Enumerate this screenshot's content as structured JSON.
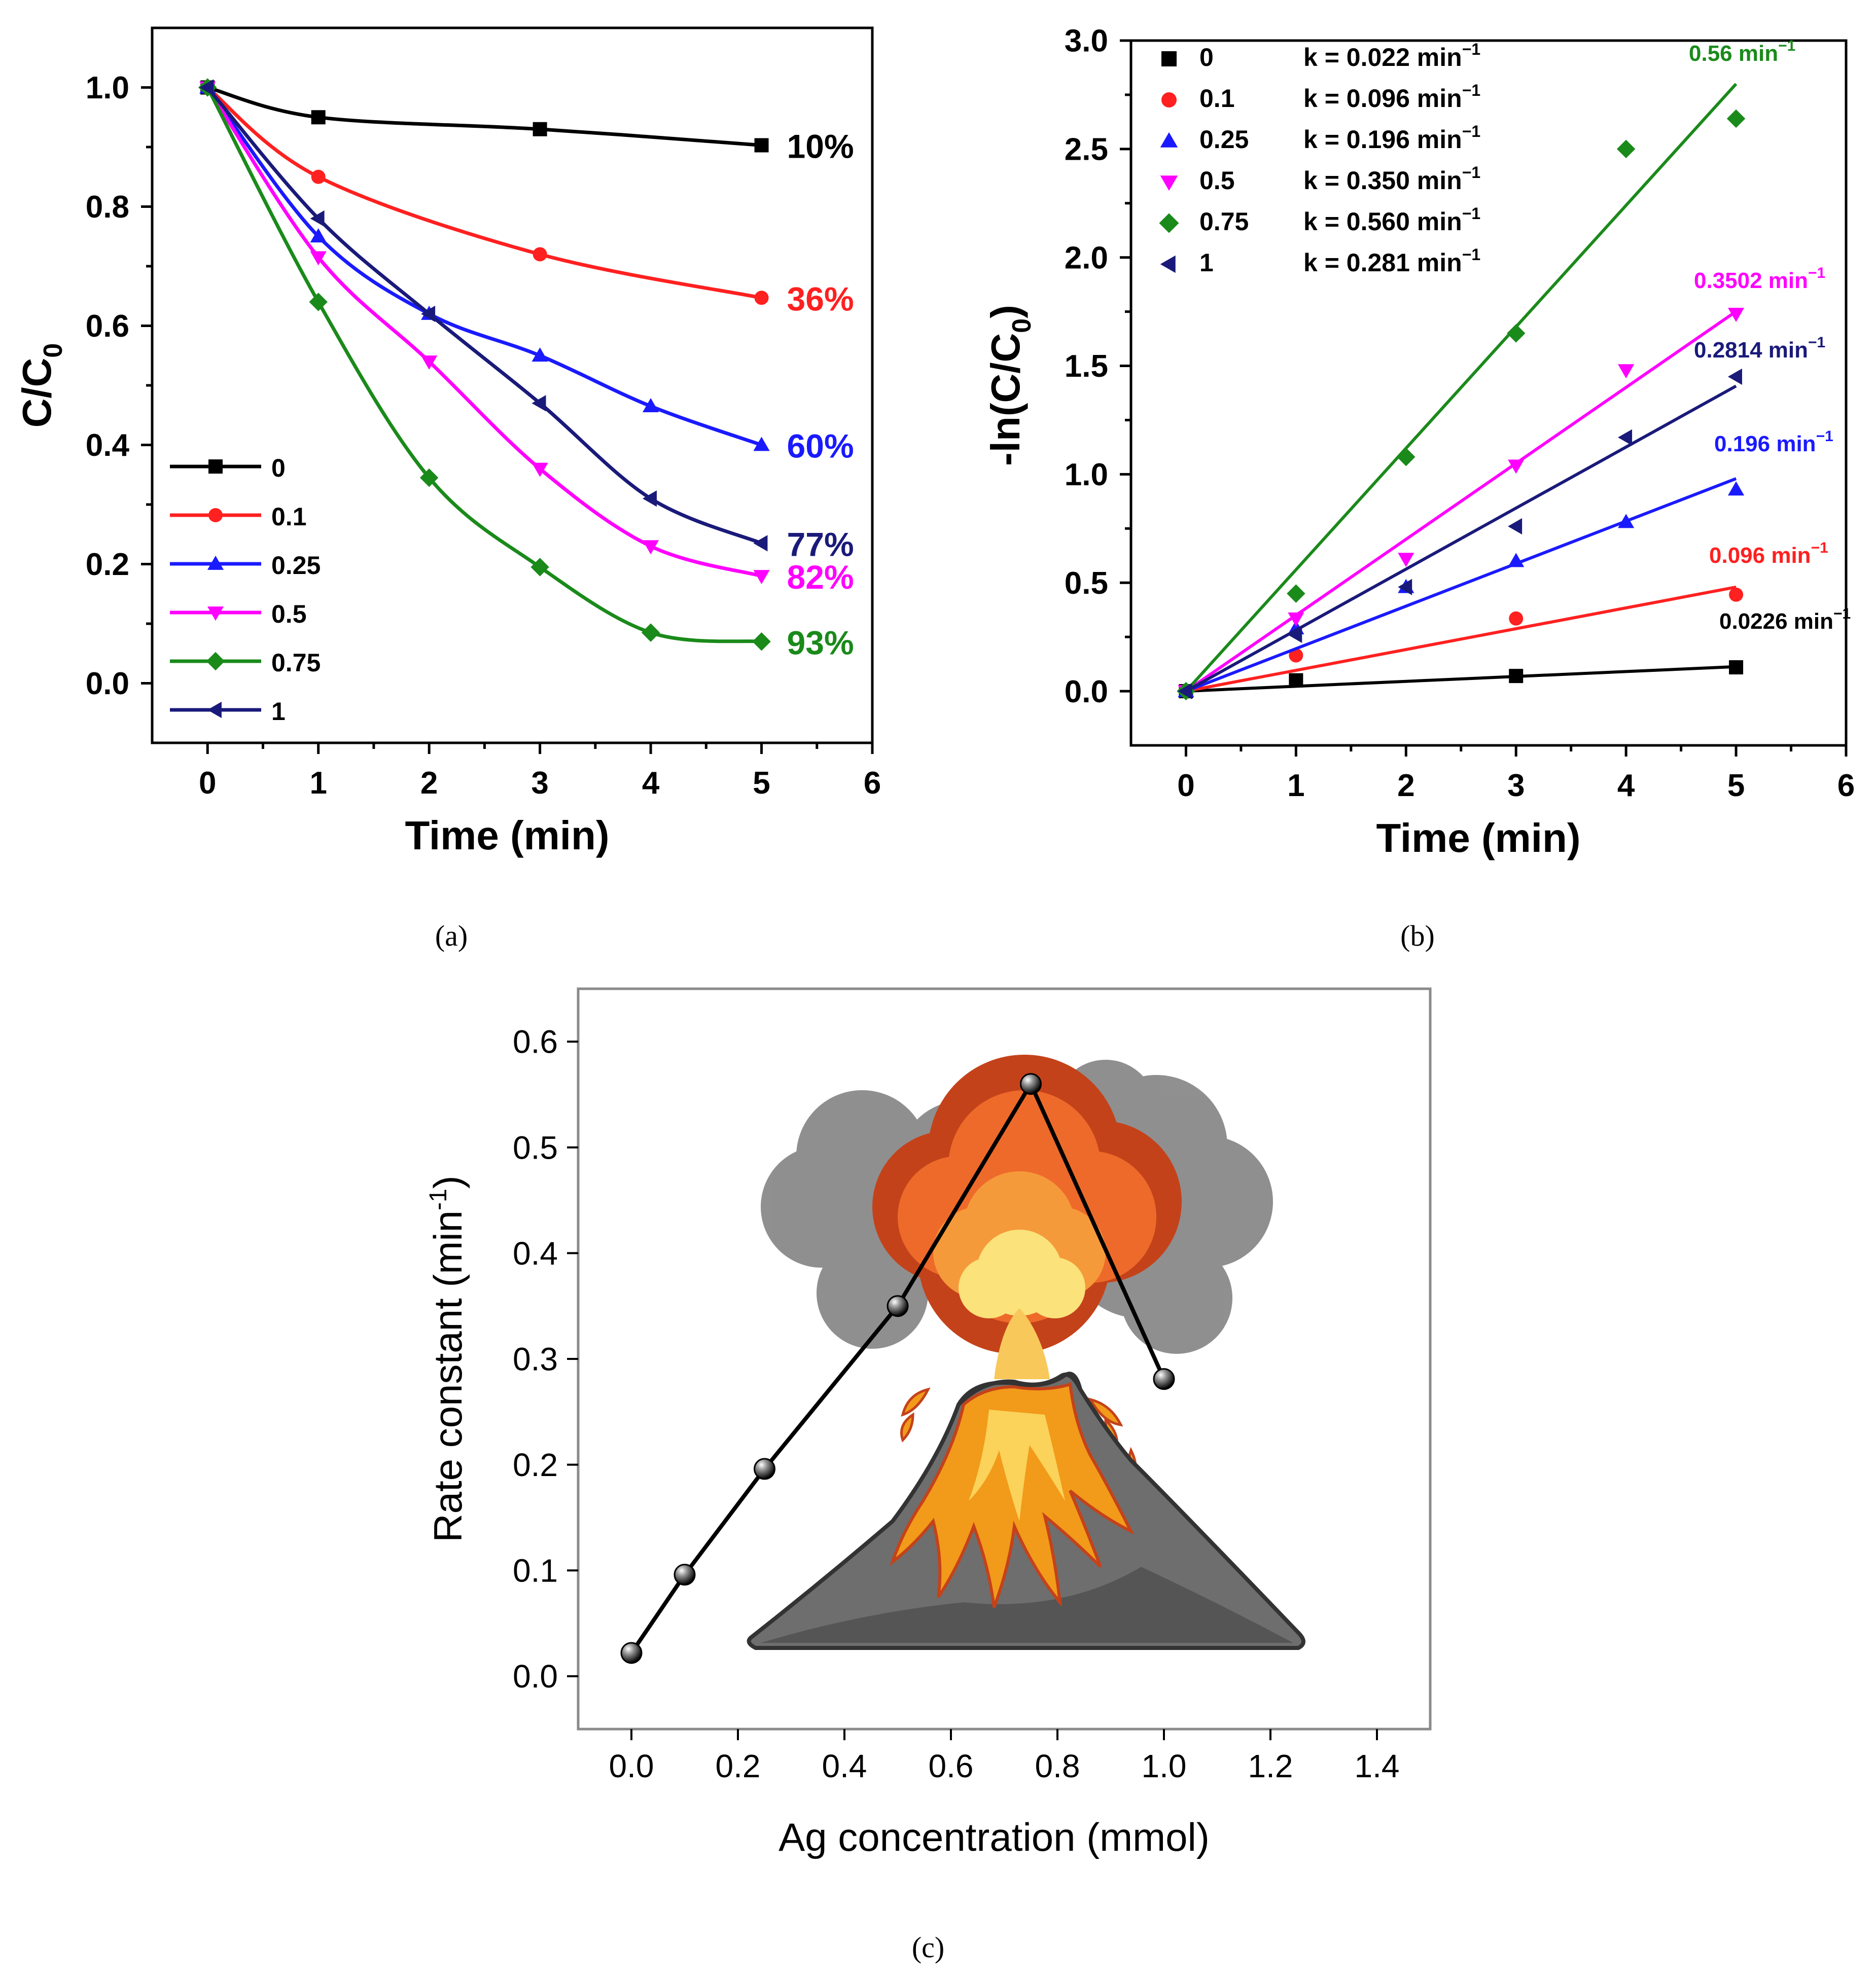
{
  "panels": [
    {
      "label": "(a)",
      "chart_data": {
        "type": "line",
        "xlabel": "Time (min)",
        "ylabel": "C/C",
        "ylabel_sub": "0",
        "xlim": [
          -0.5,
          6
        ],
        "ylim": [
          -0.1,
          1.1
        ],
        "xticks": [
          0,
          1,
          2,
          3,
          4,
          5,
          6
        ],
        "yticks": [
          0.0,
          0.2,
          0.4,
          0.6,
          0.8,
          1.0
        ],
        "legend_position": "bottom-left",
        "series": [
          {
            "name": "0",
            "color": "#000000",
            "marker": "square",
            "x": [
              0,
              1,
              3,
              5
            ],
            "y": [
              1.0,
              0.95,
              0.93,
              0.903
            ],
            "end_label": "10%"
          },
          {
            "name": "0.1",
            "color": "#ff2020",
            "marker": "circle",
            "x": [
              0,
              1,
              3,
              5
            ],
            "y": [
              1.0,
              0.85,
              0.72,
              0.647
            ],
            "end_label": "36%"
          },
          {
            "name": "0.25",
            "color": "#1a1aff",
            "marker": "triangle-up",
            "x": [
              0,
              1,
              2,
              3,
              4,
              5
            ],
            "y": [
              1.0,
              0.75,
              0.62,
              0.55,
              0.465,
              0.4
            ],
            "end_label": "60%"
          },
          {
            "name": "0.5",
            "color": "#ff00ff",
            "marker": "triangle-down",
            "x": [
              0,
              1,
              2,
              3,
              4,
              5
            ],
            "y": [
              1.0,
              0.715,
              0.54,
              0.36,
              0.23,
              0.18
            ],
            "end_label": "82%"
          },
          {
            "name": "0.75",
            "color": "#1a8a1a",
            "marker": "diamond",
            "x": [
              0,
              1,
              2,
              3,
              4,
              5
            ],
            "y": [
              1.0,
              0.64,
              0.345,
              0.195,
              0.085,
              0.07
            ],
            "end_label": "93%"
          },
          {
            "name": "1",
            "color": "#1a1a7a",
            "marker": "triangle-left",
            "x": [
              0,
              1,
              2,
              3,
              4,
              5
            ],
            "y": [
              1.0,
              0.78,
              0.62,
              0.47,
              0.31,
              0.235
            ],
            "end_label": "77%"
          }
        ]
      }
    },
    {
      "label": "(b)",
      "chart_data": {
        "type": "scatter",
        "xlabel": "Time (min)",
        "ylabel": "-ln(C/C",
        "ylabel_sub": "0",
        "ylabel_end": ")",
        "xlim": [
          -0.5,
          6
        ],
        "ylim": [
          -0.25,
          3.0
        ],
        "xticks": [
          0,
          1,
          2,
          3,
          4,
          5,
          6
        ],
        "yticks": [
          0.0,
          0.5,
          1.0,
          1.5,
          2.0,
          2.5,
          3.0
        ],
        "legend_position": "top-left",
        "series": [
          {
            "name": "0",
            "legend_k": "k = 0.022 min",
            "color": "#000000",
            "marker": "square",
            "x": [
              0,
              1,
              3,
              5
            ],
            "y": [
              0.0,
              0.05,
              0.07,
              0.11
            ],
            "slope": 0.0226,
            "line_label": "0.0226 min"
          },
          {
            "name": "0.1",
            "legend_k": "k = 0.096 min",
            "color": "#ff2020",
            "marker": "circle",
            "x": [
              0,
              1,
              3,
              5
            ],
            "y": [
              0.0,
              0.165,
              0.335,
              0.445
            ],
            "slope": 0.096,
            "line_label": "0.096 min"
          },
          {
            "name": "0.25",
            "legend_k": "k = 0.196 min",
            "color": "#1a1aff",
            "marker": "triangle-up",
            "x": [
              0,
              1,
              2,
              3,
              4,
              5
            ],
            "y": [
              0.0,
              0.29,
              0.48,
              0.6,
              0.78,
              0.93
            ],
            "slope": 0.196,
            "line_label": "0.196 min"
          },
          {
            "name": "0.5",
            "legend_k": "k = 0.350 min",
            "color": "#ff00ff",
            "marker": "triangle-down",
            "x": [
              0,
              1,
              2,
              3,
              4,
              5
            ],
            "y": [
              0.0,
              0.335,
              0.61,
              1.04,
              1.48,
              1.74
            ],
            "slope": 0.3502,
            "line_label": "0.3502 min"
          },
          {
            "name": "0.75",
            "legend_k": "k = 0.560 min",
            "color": "#1a8a1a",
            "marker": "diamond",
            "x": [
              0,
              1,
              2,
              3,
              4,
              5
            ],
            "y": [
              0.0,
              0.45,
              1.08,
              1.65,
              2.5,
              2.64
            ],
            "slope": 0.56,
            "line_label": "0.56 min"
          },
          {
            "name": "1",
            "legend_k": "k = 0.281 min",
            "color": "#1a1a7a",
            "marker": "triangle-left",
            "x": [
              0,
              1,
              2,
              3,
              4,
              5
            ],
            "y": [
              0.0,
              0.26,
              0.48,
              0.76,
              1.17,
              1.45
            ],
            "slope": 0.2814,
            "line_label": "0.2814 min"
          }
        ],
        "superscript": "−1"
      }
    },
    {
      "label": "(c)",
      "chart_data": {
        "type": "line",
        "xlabel": "Ag concentration (mmol)",
        "ylabel": "Rate constant (min",
        "ylabel_sup": "-1",
        "ylabel_end": ")",
        "xlim": [
          -0.1,
          1.5
        ],
        "ylim": [
          -0.05,
          0.65
        ],
        "xticks": [
          0.0,
          0.2,
          0.4,
          0.6,
          0.8,
          1.0,
          1.2,
          1.4
        ],
        "yticks": [
          0.0,
          0.1,
          0.2,
          0.3,
          0.4,
          0.5,
          0.6
        ],
        "series": [
          {
            "color": "#000000",
            "marker": "sphere",
            "x": [
              0,
              0.1,
              0.25,
              0.5,
              0.75,
              1.0
            ],
            "y": [
              0.022,
              0.096,
              0.196,
              0.35,
              0.56,
              0.281
            ]
          }
        ],
        "background_illustration": "erupting-volcano"
      }
    }
  ]
}
